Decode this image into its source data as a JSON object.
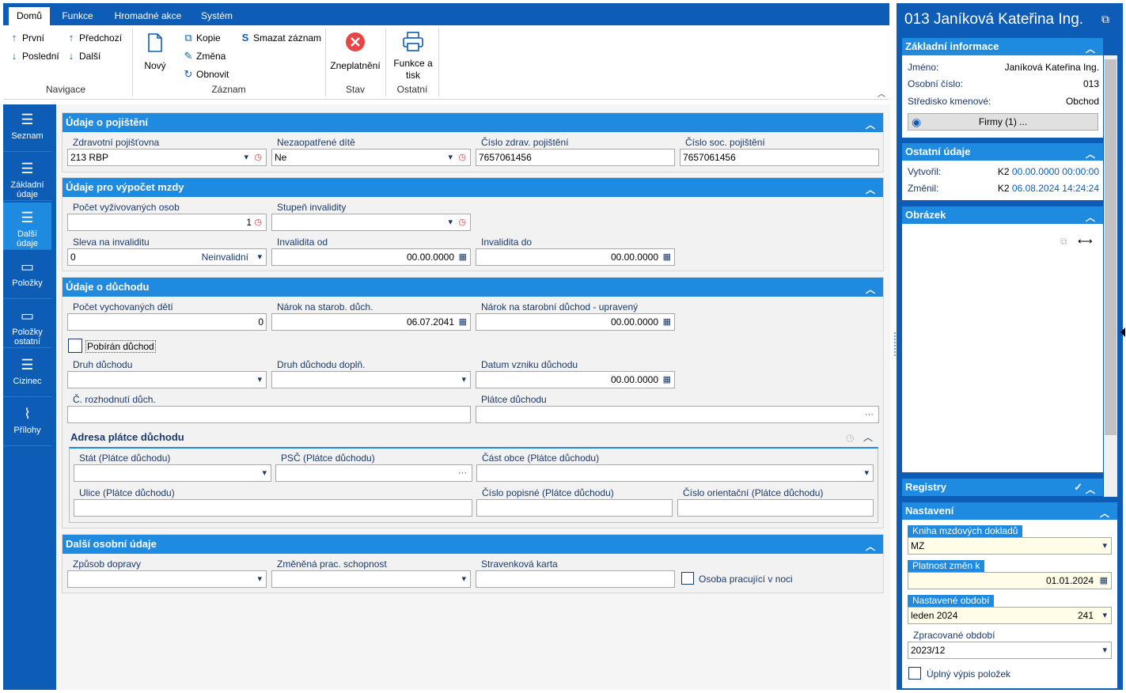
{
  "ribbon": {
    "tabs": [
      "Domů",
      "Funkce",
      "Hromadné akce",
      "Systém"
    ],
    "nav": {
      "first": "První",
      "prev": "Předchozí",
      "last": "Poslední",
      "next": "Další",
      "label": "Navigace"
    },
    "record": {
      "new": "Nový",
      "copy": "Kopie",
      "delete": "Smazat záznam",
      "change": "Změna",
      "refresh": "Obnovit",
      "label": "Záznam"
    },
    "state": {
      "invalidate": "Zneplatnění",
      "label": "Stav"
    },
    "other": {
      "print_line1": "Funkce a",
      "print_line2": "tisk",
      "label": "Ostatní"
    }
  },
  "leftnav": [
    {
      "line1": "Seznam",
      "line2": "",
      "icon": "list-icon"
    },
    {
      "line1": "Základní",
      "line2": "údaje",
      "icon": "list-icon"
    },
    {
      "line1": "Další",
      "line2": "údaje",
      "icon": "list-icon"
    },
    {
      "line1": "Položky",
      "line2": "",
      "icon": "box-icon"
    },
    {
      "line1": "Položky",
      "line2": "ostatní",
      "icon": "box-icon"
    },
    {
      "line1": "Cizinec",
      "line2": "",
      "icon": "list-icon"
    },
    {
      "line1": "Přílohy",
      "line2": "",
      "icon": "paperclip-icon"
    }
  ],
  "insurance": {
    "title": "Údaje o pojištění",
    "health_label": "Zdravotní pojišťovna",
    "health_value": "213 RBP",
    "child_label": "Nezaopatřené dítě",
    "child_value": "Ne",
    "health_no_label": "Číslo zdrav. pojištění",
    "health_no_value": "7657061456",
    "soc_no_label": "Číslo soc. pojištění",
    "soc_no_value": "7657061456"
  },
  "wage": {
    "title": "Údaje pro výpočet mzdy",
    "dependents_label": "Počet vyživovaných osob",
    "dependents_value": "1",
    "disability_label": "Stupeň invalidity",
    "discount_label": "Sleva na invaliditu",
    "discount_value": "0",
    "discount_text": "Neinvalidní",
    "from_label": "Invalidita od",
    "from_value": "00.00.0000",
    "to_label": "Invalidita do",
    "to_value": "00.00.0000"
  },
  "pension": {
    "title": "Údaje o důchodu",
    "children_label": "Počet vychovaných dětí",
    "children_value": "0",
    "claim_label": "Nárok na starob. důch.",
    "claim_value": "06.07.2041",
    "claim_adj_label": "Nárok na starobní důchod - upravený",
    "claim_adj_value": "00.00.0000",
    "receiving_label": "Pobírán důchod",
    "type_label": "Druh důchodu",
    "type2_label": "Druh důchodu doplň.",
    "origin_label": "Datum vzniku důchodu",
    "origin_value": "00.00.0000",
    "decision_label": "Č. rozhodnutí důch.",
    "payer_label": "Plátce důchodu",
    "address": {
      "title": "Adresa plátce důchodu",
      "state_label": "Stát (Plátce důchodu)",
      "zip_label": "PSČ (Plátce důchodu)",
      "district_label": "Část obce (Plátce důchodu)",
      "street_label": "Ulice (Plátce důchodu)",
      "house_label": "Číslo popisné (Plátce důchodu)",
      "orient_label": "Číslo orientační (Plátce důchodu)"
    }
  },
  "personal": {
    "title": "Další osobní údaje",
    "transport_label": "Způsob dopravy",
    "ability_label": "Změněná prac. schopnost",
    "meal_label": "Stravenková karta",
    "night_label": "Osoba pracující v noci"
  },
  "right": {
    "title": "013 Janíková Kateřina Ing.",
    "basic": {
      "title": "Základní informace",
      "name_label": "Jméno:",
      "name_value": "Janíková Kateřina Ing.",
      "no_label": "Osobní číslo:",
      "no_value": "013",
      "center_label": "Středisko kmenové:",
      "center_value": "Obchod",
      "firms": "Firmy (1) ..."
    },
    "other": {
      "title": "Ostatní údaje",
      "created_label": "Vytvořil:",
      "created_user": "K2",
      "created_date": "00.00.0000 00:00:00",
      "changed_label": "Změnil:",
      "changed_user": "K2",
      "changed_date": "06.08.2024 14:24:24"
    },
    "image": {
      "title": "Obrázek"
    },
    "registry": {
      "title": "Registry"
    },
    "settings": {
      "title": "Nastavení",
      "book_label": "Kniha mzdových dokladů",
      "book_value": "MZ",
      "valid_label": "Platnost změn k",
      "valid_value": "01.01.2024",
      "period_label": "Nastavené období",
      "period_value": "leden 2024",
      "period_num": "241",
      "processed_label": "Zpracované období",
      "processed_value": "2023/12",
      "full_label": "Úplný výpis položek"
    }
  },
  "colors": {
    "primary": "#0d5db7",
    "accent": "#1f8be0",
    "highlight": "#fffde7"
  }
}
